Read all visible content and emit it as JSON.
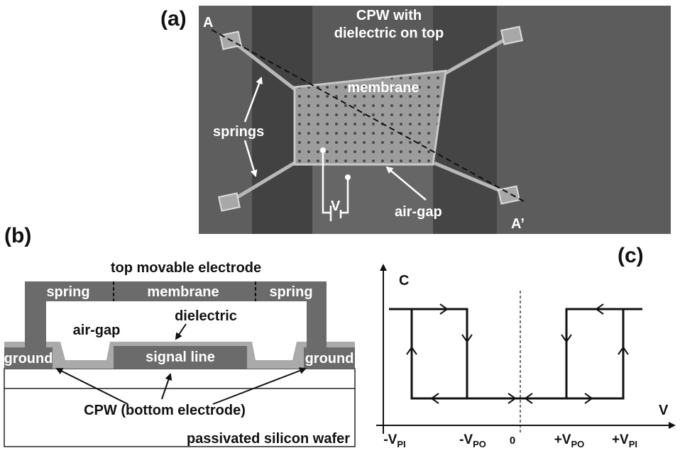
{
  "panel_a": {
    "label": "(a)",
    "point_a": "A",
    "point_a_prime": "A’",
    "cpw_line1": "CPW with",
    "cpw_line2": "dielectric on top",
    "membrane": "membrane",
    "springs": "springs",
    "air_gap": "air-gap",
    "voltage": "V"
  },
  "panel_b": {
    "label": "(b)",
    "top_electrode": "top movable electrode",
    "spring_left": "spring",
    "membrane": "membrane",
    "spring_right": "spring",
    "air_gap": "air-gap",
    "dielectric": "dielectric",
    "ground_left": "ground",
    "signal_line": "signal line",
    "ground_right": "ground",
    "cpw": "CPW (bottom electrode)",
    "wafer": "passivated silicon wafer"
  },
  "panel_c": {
    "label": "(c)",
    "y_axis": "C",
    "x_axis": "V",
    "ticks": [
      {
        "main": "-V",
        "sub": "PI"
      },
      {
        "main": "-V",
        "sub": "PO"
      },
      {
        "main": "0"
      },
      {
        "main": "+V",
        "sub": "PO"
      },
      {
        "main": "+V",
        "sub": "PI"
      }
    ]
  }
}
